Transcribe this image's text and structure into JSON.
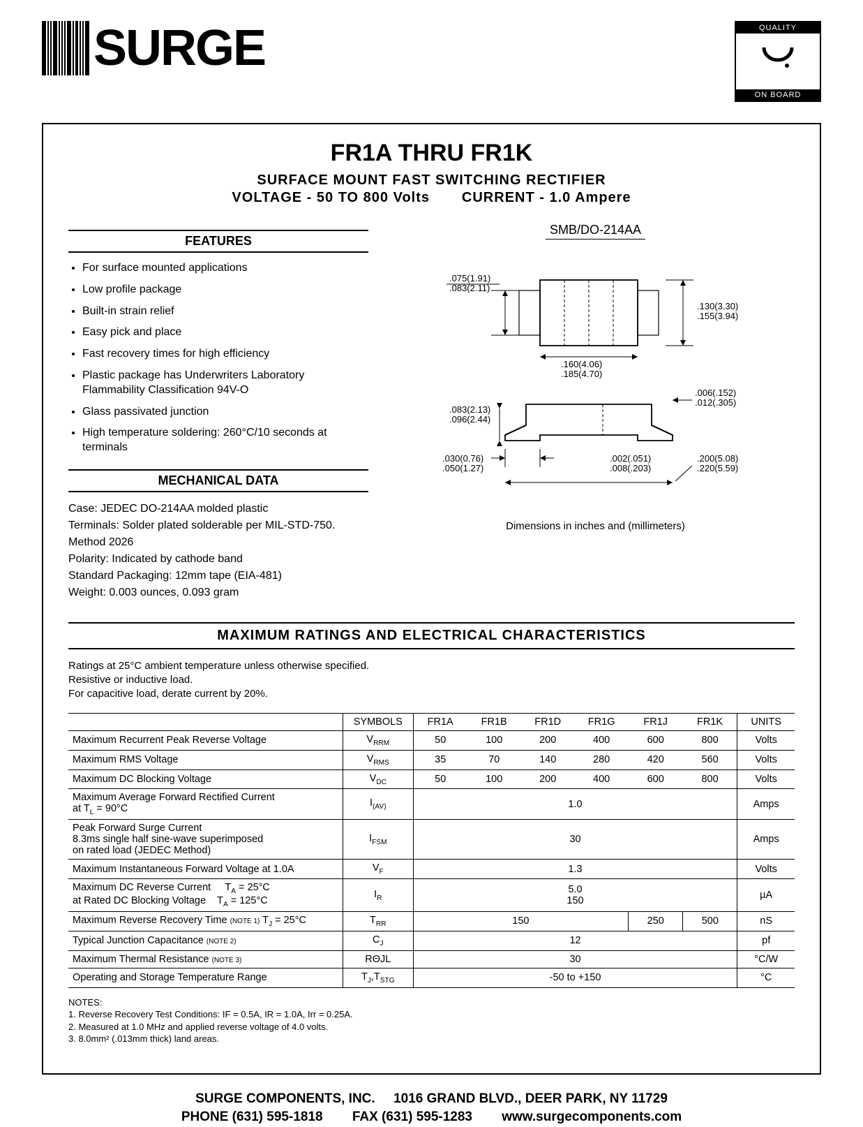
{
  "brand": "SURGE",
  "badge": {
    "top": "QUALITY",
    "bottom": "ON BOARD",
    "glyph": "(.)"
  },
  "title": "FR1A THRU FR1K",
  "subtitle_line1": "SURFACE   MOUNT   FAST   SWITCHING   RECTIFIER",
  "subtitle_line2_left": "VOLTAGE - 50 TO 800 Volts",
  "subtitle_line2_right": "CURRENT - 1.0 Ampere",
  "sections": {
    "features_head": "FEATURES",
    "mech_head": "MECHANICAL DATA",
    "ratings_head": "MAXIMUM RATINGS AND ELECTRICAL CHARACTERISTICS"
  },
  "features": [
    "For surface mounted applications",
    "Low profile package",
    "Built-in strain relief",
    "Easy pick and place",
    "Fast recovery times for high efficiency",
    "Plastic package has Underwriters Laboratory Flammability Classification 94V-O",
    "Glass passivated junction",
    "High temperature soldering: 260°C/10 seconds at terminals"
  ],
  "mechanical": [
    "Case: JEDEC DO-214AA molded plastic",
    "Terminals: Solder plated solderable per MIL-STD-750. Method 2026",
    "Polarity: Indicated by cathode band",
    "Standard Packaging: 12mm tape (EIA-481)",
    "Weight: 0.003 ounces, 0.093 gram"
  ],
  "package_label": "SMB/DO-214AA",
  "dim_note": "Dimensions in inches and (millimeters)",
  "diagram": {
    "top_view": {
      "body_w": 120,
      "body_h": 80,
      "lead_w": 36,
      "dims": {
        "thickness_a": ".075(1.91)",
        "thickness_b": ".083(2.11)",
        "width_a": ".160(4.06)",
        "width_b": ".185(4.70)",
        "height_a": ".130(3.30)",
        "height_b": ".155(3.94)"
      }
    },
    "side_view": {
      "dims": {
        "lead_h_a": ".083(2.13)",
        "lead_h_b": ".096(2.44)",
        "standoff_a": ".006(.152)",
        "standoff_b": ".012(.305)",
        "lead_ext_a": ".030(0.76)",
        "lead_ext_b": ".050(1.27)",
        "foot_a": ".002(.051)",
        "foot_b": ".008(.203)",
        "overall_a": ".200(5.08)",
        "overall_b": ".220(5.59)"
      }
    }
  },
  "ratings_intro": [
    "Ratings at 25°C ambient temperature unless otherwise specified.",
    "Resistive or inductive load.",
    "For capacitive load, derate current by 20%."
  ],
  "columns": [
    "FR1A",
    "FR1B",
    "FR1D",
    "FR1G",
    "FR1J",
    "FR1K"
  ],
  "table": [
    {
      "param": "Maximum Recurrent Peak Reverse Voltage",
      "sym": "V<sub>RRM</sub>",
      "vals": [
        "50",
        "100",
        "200",
        "400",
        "600",
        "800"
      ],
      "unit": "Volts"
    },
    {
      "param": "Maximum RMS Voltage",
      "sym": "V<sub>RMS</sub>",
      "vals": [
        "35",
        "70",
        "140",
        "280",
        "420",
        "560"
      ],
      "unit": "Volts"
    },
    {
      "param": "Maximum DC Blocking Voltage",
      "sym": "V<sub>DC</sub>",
      "vals": [
        "50",
        "100",
        "200",
        "400",
        "600",
        "800"
      ],
      "unit": "Volts"
    },
    {
      "param": "Maximum Average Forward Rectified Current<br>at T<sub>L</sub> = 90°C",
      "sym": "I<sub>(AV)</sub>",
      "span": "1.0",
      "unit": "Amps"
    },
    {
      "param": "Peak Forward Surge Current<br>8.3ms single half sine-wave superimposed<br>on rated load (JEDEC Method)",
      "sym": "I<sub>FSM</sub>",
      "span": "30",
      "unit": "Amps"
    },
    {
      "param": "Maximum Instantaneous Forward Voltage at 1.0A",
      "sym": "V<sub>F</sub>",
      "span": "1.3",
      "unit": "Volts"
    },
    {
      "param": "Maximum DC Reverse Current&nbsp;&nbsp;&nbsp;&nbsp;&nbsp;T<sub>A</sub> = 25°C<br>at Rated DC Blocking Voltage&nbsp;&nbsp;&nbsp;&nbsp;T<sub>A</sub> = 125°C",
      "sym": "I<sub>R</sub>",
      "span2": [
        "5.0",
        "150"
      ],
      "unit": "µA"
    },
    {
      "param": "Maximum Reverse Recovery Time <span class='sub2'>(NOTE 1)</span> T<sub>J</sub> = 25°C",
      "sym": "T<sub>RR</sub>",
      "mixed": {
        "span4": "150",
        "v5": "250",
        "v6": "500"
      },
      "unit": "nS"
    },
    {
      "param": "Typical Junction Capacitance <span class='sub2'>(NOTE 2)</span>",
      "sym": "C<sub>J</sub>",
      "span": "12",
      "unit": "pf"
    },
    {
      "param": "Maximum Thermal Resistance <span class='sub2'>(NOTE 3)</span>",
      "sym": "RΘJL",
      "span": "30",
      "unit": "°C/W"
    },
    {
      "param": "Operating and Storage Temperature Range",
      "sym": "T<sub>J</sub>,T<sub>STG</sub>",
      "span": "-50 to +150",
      "unit": "°C"
    }
  ],
  "notes_head": "NOTES:",
  "notes": [
    "1. Reverse Recovery Test Conditions: IF = 0.5A, IR = 1.0A, Irr = 0.25A.",
    "2. Measured at 1.0 MHz and applied reverse voltage of 4.0 volts.",
    "3. 8.0mm² (.013mm thick) land areas."
  ],
  "footer": {
    "line1_a": "SURGE COMPONENTS, INC.",
    "line1_b": "1016 GRAND BLVD., DEER PARK, NY 11729",
    "line2_a": "PHONE (631) 595-1818",
    "line2_b": "FAX (631) 595-1283",
    "line2_c": "www.surgecomponents.com"
  },
  "colors": {
    "text": "#000000",
    "bg": "#ffffff",
    "rule": "#000000"
  },
  "fonts": {
    "body_pt": 12,
    "title_pt": 26,
    "subtitle_pt": 16,
    "section_head_pt": 14,
    "footer_pt": 15
  }
}
